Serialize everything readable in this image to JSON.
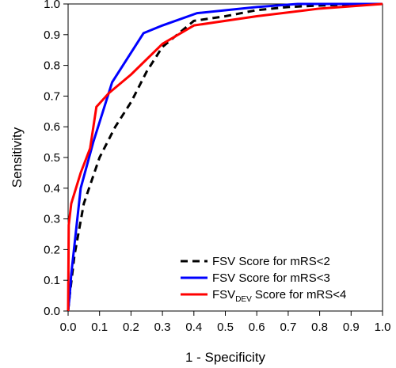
{
  "chart_data": {
    "type": "line",
    "xlabel": "1 - Specificity",
    "ylabel": "Sensitivity",
    "xlim": [
      0,
      1
    ],
    "ylim": [
      0,
      1
    ],
    "xticks": [
      "0.0",
      "0.1",
      "0.2",
      "0.3",
      "0.4",
      "0.5",
      "0.6",
      "0.7",
      "0.8",
      "0.9",
      "1.0"
    ],
    "yticks": [
      "0.0",
      "0.1",
      "0.2",
      "0.3",
      "0.4",
      "0.5",
      "0.6",
      "0.7",
      "0.8",
      "0.9",
      "1.0"
    ],
    "grid": false,
    "legend_position": "bottom-right",
    "series": [
      {
        "name": "FSV Score for mRS<2",
        "legend_parts": [
          "FSV Score for mRS<2"
        ],
        "color": "#000000",
        "style": "dashed",
        "x": [
          0.0,
          0.005,
          0.02,
          0.05,
          0.1,
          0.15,
          0.2,
          0.25,
          0.3,
          0.4,
          0.5,
          0.6,
          0.7,
          0.8,
          0.9,
          1.0
        ],
        "y": [
          0.0,
          0.05,
          0.18,
          0.35,
          0.5,
          0.6,
          0.68,
          0.78,
          0.86,
          0.945,
          0.96,
          0.98,
          0.99,
          0.995,
          0.998,
          1.0
        ]
      },
      {
        "name": "FSV Score for mRS<3",
        "legend_parts": [
          "FSV Score for mRS<3"
        ],
        "color": "#0000ff",
        "style": "solid",
        "x": [
          0.0,
          0.005,
          0.01,
          0.04,
          0.08,
          0.14,
          0.24,
          0.3,
          0.41,
          0.6,
          0.73,
          1.0
        ],
        "y": [
          0.0,
          0.05,
          0.12,
          0.4,
          0.55,
          0.745,
          0.905,
          0.93,
          0.97,
          0.99,
          1.0,
          1.0
        ]
      },
      {
        "name": "FSVDEV Score for mRS<4",
        "legend_parts": [
          "FSV",
          "DEV",
          " Score for mRS<4"
        ],
        "color": "#ff0000",
        "style": "solid",
        "x": [
          0.0,
          0.002,
          0.01,
          0.04,
          0.07,
          0.09,
          0.13,
          0.2,
          0.3,
          0.4,
          0.6,
          0.8,
          1.0
        ],
        "y": [
          0.0,
          0.28,
          0.35,
          0.45,
          0.53,
          0.665,
          0.71,
          0.77,
          0.87,
          0.93,
          0.96,
          0.985,
          1.0
        ]
      }
    ]
  }
}
